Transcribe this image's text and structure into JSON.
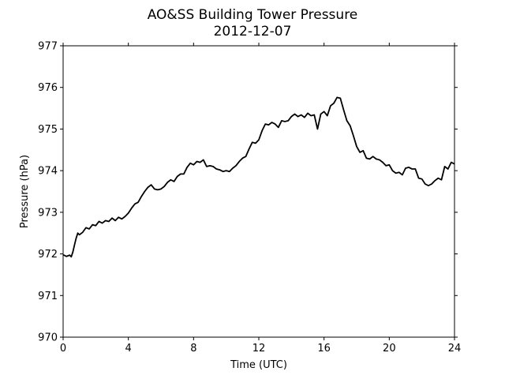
{
  "chart_data": {
    "type": "line",
    "title": "AO&SS Building Tower Pressure",
    "subtitle": "2012-12-07",
    "xlabel": "Time (UTC)",
    "ylabel": "Pressure (hPa)",
    "xlim": [
      0,
      24
    ],
    "ylim": [
      970,
      977
    ],
    "xticks": [
      0,
      4,
      8,
      12,
      16,
      20,
      24
    ],
    "yticks": [
      970,
      971,
      972,
      973,
      974,
      975,
      976,
      977
    ],
    "grid": false,
    "line_color": "#000000",
    "series": [
      {
        "x": [
          0.0,
          0.2,
          0.4,
          0.5,
          0.6,
          0.7,
          0.8,
          0.9,
          1.0,
          1.2,
          1.4,
          1.6,
          1.8,
          2.0,
          2.2,
          2.4,
          2.6,
          2.8,
          3.0,
          3.2,
          3.4,
          3.6,
          3.8,
          4.0,
          4.2,
          4.4,
          4.6,
          4.8,
          5.0,
          5.2,
          5.4,
          5.6,
          5.8,
          6.0,
          6.2,
          6.4,
          6.6,
          6.8,
          7.0,
          7.2,
          7.4,
          7.6,
          7.8,
          8.0,
          8.2,
          8.4,
          8.6,
          8.8,
          9.0,
          9.2,
          9.4,
          9.6,
          9.8,
          10.0,
          10.2,
          10.4,
          10.6,
          10.8,
          11.0,
          11.2,
          11.4,
          11.6,
          11.8,
          12.0,
          12.2,
          12.4,
          12.6,
          12.8,
          13.0,
          13.2,
          13.4,
          13.6,
          13.8,
          14.0,
          14.2,
          14.4,
          14.6,
          14.8,
          15.0,
          15.2,
          15.4,
          15.6,
          15.8,
          16.0,
          16.2,
          16.4,
          16.6,
          16.8,
          17.0,
          17.2,
          17.4,
          17.6,
          17.8,
          18.0,
          18.2,
          18.4,
          18.6,
          18.8,
          19.0,
          19.2,
          19.4,
          19.6,
          19.8,
          20.0,
          20.2,
          20.4,
          20.6,
          20.8,
          21.0,
          21.2,
          21.4,
          21.6,
          21.8,
          22.0,
          22.2,
          22.4,
          22.6,
          22.8,
          23.0,
          23.2,
          23.4,
          23.6,
          23.8,
          24.0
        ],
        "values": [
          971.98,
          971.94,
          971.97,
          971.93,
          972.05,
          972.22,
          972.38,
          972.5,
          972.46,
          972.52,
          972.63,
          972.6,
          972.7,
          972.68,
          972.78,
          972.74,
          972.8,
          972.78,
          972.86,
          972.8,
          972.88,
          972.84,
          972.9,
          972.98,
          973.1,
          973.2,
          973.24,
          973.38,
          973.5,
          973.6,
          973.66,
          973.56,
          973.54,
          973.56,
          973.62,
          973.72,
          973.78,
          973.74,
          973.86,
          973.92,
          973.92,
          974.08,
          974.18,
          974.14,
          974.22,
          974.2,
          974.26,
          974.1,
          974.12,
          974.1,
          974.04,
          974.02,
          973.98,
          974.0,
          973.98,
          974.06,
          974.12,
          974.22,
          974.3,
          974.34,
          974.52,
          974.68,
          974.66,
          974.74,
          974.96,
          975.12,
          975.1,
          975.16,
          975.12,
          975.04,
          975.2,
          975.18,
          975.2,
          975.3,
          975.36,
          975.3,
          975.34,
          975.28,
          975.38,
          975.32,
          975.34,
          975.0,
          975.36,
          975.42,
          975.32,
          975.56,
          975.62,
          975.76,
          975.74,
          975.46,
          975.2,
          975.08,
          974.84,
          974.58,
          974.44,
          974.48,
          974.3,
          974.28,
          974.34,
          974.28,
          974.26,
          974.2,
          974.12,
          974.14,
          974.0,
          973.94,
          973.96,
          973.9,
          974.06,
          974.08,
          974.04,
          974.04,
          973.82,
          973.8,
          973.68,
          973.64,
          973.68,
          973.76,
          973.82,
          973.78,
          974.1,
          974.04,
          974.2,
          974.16
        ]
      }
    ]
  }
}
